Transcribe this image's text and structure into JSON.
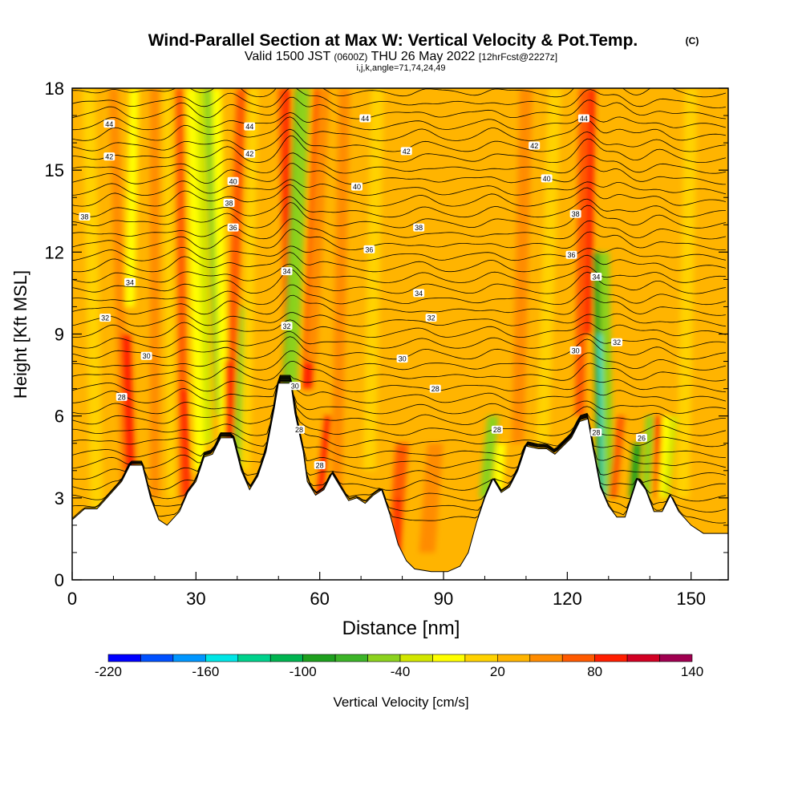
{
  "chart_data": {
    "type": "heatmap",
    "title": "Wind-Parallel Section at Max W: Vertical Velocity & Pot.Temp.",
    "title_mark": "(C)",
    "subtitle_valid": "Valid 1500 JST",
    "subtitle_utc": "(0600Z)",
    "subtitle_date": "THU 26 May 2022",
    "subtitle_fcst": "[12hrFcst@2227z]",
    "subtitle_indices": "i,j,k,angle=71,74,24,49",
    "xlabel": "Distance [nm]",
    "ylabel": "Height [Kft MSL]",
    "xlim": [
      0,
      159
    ],
    "ylim": [
      0,
      18
    ],
    "x_ticks": [
      0,
      30,
      60,
      90,
      120,
      150
    ],
    "y_ticks": [
      0,
      3,
      6,
      9,
      12,
      15,
      18
    ],
    "colorbar": {
      "label": "Vertical Velocity [cm/s]",
      "tick_labels": [
        -220,
        -160,
        -100,
        -40,
        20,
        80,
        140
      ],
      "bounds": [
        -220,
        -200,
        -180,
        -160,
        -140,
        -120,
        -100,
        -80,
        -60,
        -40,
        -20,
        0,
        20,
        40,
        60,
        80,
        100,
        120,
        140
      ],
      "colors": [
        "#0000ff",
        "#0050ff",
        "#0096ff",
        "#00e6e6",
        "#00d28c",
        "#00b450",
        "#1ea01e",
        "#3cb428",
        "#8cd21e",
        "#d2e600",
        "#ffff00",
        "#ffd200",
        "#ffb400",
        "#ff8c00",
        "#ff5a00",
        "#ff1e00",
        "#d20023",
        "#a00050",
        "#5a0096"
      ]
    },
    "terrain": [
      [
        0,
        2.2
      ],
      [
        3,
        2.6
      ],
      [
        6,
        2.6
      ],
      [
        9,
        3.1
      ],
      [
        12,
        3.6
      ],
      [
        14,
        4.2
      ],
      [
        17,
        4.2
      ],
      [
        19,
        3.0
      ],
      [
        21,
        2.2
      ],
      [
        23,
        2.0
      ],
      [
        26,
        2.5
      ],
      [
        28,
        3.2
      ],
      [
        30,
        3.6
      ],
      [
        32,
        4.5
      ],
      [
        34,
        4.6
      ],
      [
        36,
        5.2
      ],
      [
        39,
        5.2
      ],
      [
        41,
        4.0
      ],
      [
        43,
        3.3
      ],
      [
        45,
        3.8
      ],
      [
        47,
        4.7
      ],
      [
        49,
        6.3
      ],
      [
        50,
        7.2
      ],
      [
        53,
        7.2
      ],
      [
        54,
        6.1
      ],
      [
        56,
        4.7
      ],
      [
        57,
        3.6
      ],
      [
        59,
        3.1
      ],
      [
        61,
        3.3
      ],
      [
        63,
        3.9
      ],
      [
        65,
        3.4
      ],
      [
        67,
        2.9
      ],
      [
        69,
        3.0
      ],
      [
        71,
        2.8
      ],
      [
        73,
        3.1
      ],
      [
        75,
        3.3
      ],
      [
        77,
        2.4
      ],
      [
        79,
        1.3
      ],
      [
        81,
        0.7
      ],
      [
        83,
        0.4
      ],
      [
        87,
        0.3
      ],
      [
        91,
        0.3
      ],
      [
        94,
        0.5
      ],
      [
        96,
        1.0
      ],
      [
        98,
        2.1
      ],
      [
        100,
        3.0
      ],
      [
        102,
        3.7
      ],
      [
        104,
        3.2
      ],
      [
        106,
        3.4
      ],
      [
        108,
        4.0
      ],
      [
        110,
        4.9
      ],
      [
        113,
        4.8
      ],
      [
        115,
        4.8
      ],
      [
        117,
        4.6
      ],
      [
        119,
        4.9
      ],
      [
        121,
        5.2
      ],
      [
        123,
        5.8
      ],
      [
        125,
        5.9
      ],
      [
        126,
        5.0
      ],
      [
        128,
        3.4
      ],
      [
        130,
        2.7
      ],
      [
        132,
        2.3
      ],
      [
        134,
        2.3
      ],
      [
        137,
        3.7
      ],
      [
        139,
        3.3
      ],
      [
        141,
        2.5
      ],
      [
        143,
        2.5
      ],
      [
        145,
        3.1
      ],
      [
        147,
        2.5
      ],
      [
        150,
        2.0
      ],
      [
        153,
        1.7
      ],
      [
        156,
        1.7
      ],
      [
        159,
        1.7
      ]
    ],
    "theta_contour_labels": [
      {
        "x": 9,
        "y": 16.7,
        "text": "44"
      },
      {
        "x": 43,
        "y": 16.6,
        "text": "44"
      },
      {
        "x": 71,
        "y": 16.9,
        "text": "44"
      },
      {
        "x": 124,
        "y": 16.9,
        "text": "44"
      },
      {
        "x": 9,
        "y": 15.5,
        "text": "42"
      },
      {
        "x": 43,
        "y": 15.6,
        "text": "42"
      },
      {
        "x": 81,
        "y": 15.7,
        "text": "42"
      },
      {
        "x": 112,
        "y": 15.9,
        "text": "42"
      },
      {
        "x": 39,
        "y": 14.6,
        "text": "40"
      },
      {
        "x": 69,
        "y": 14.4,
        "text": "40"
      },
      {
        "x": 115,
        "y": 14.7,
        "text": "40"
      },
      {
        "x": 38,
        "y": 13.8,
        "text": "38"
      },
      {
        "x": 3,
        "y": 13.3,
        "text": "38"
      },
      {
        "x": 84,
        "y": 12.9,
        "text": "38"
      },
      {
        "x": 122,
        "y": 13.4,
        "text": "38"
      },
      {
        "x": 39,
        "y": 12.9,
        "text": "36"
      },
      {
        "x": 72,
        "y": 12.1,
        "text": "36"
      },
      {
        "x": 121,
        "y": 11.9,
        "text": "36"
      },
      {
        "x": 14,
        "y": 10.9,
        "text": "34"
      },
      {
        "x": 52,
        "y": 11.3,
        "text": "34"
      },
      {
        "x": 84,
        "y": 10.5,
        "text": "34"
      },
      {
        "x": 127,
        "y": 11.1,
        "text": "34"
      },
      {
        "x": 8,
        "y": 9.6,
        "text": "32"
      },
      {
        "x": 52,
        "y": 9.3,
        "text": "32"
      },
      {
        "x": 87,
        "y": 9.6,
        "text": "32"
      },
      {
        "x": 132,
        "y": 8.7,
        "text": "32"
      },
      {
        "x": 18,
        "y": 8.2,
        "text": "30"
      },
      {
        "x": 80,
        "y": 8.1,
        "text": "30"
      },
      {
        "x": 122,
        "y": 8.4,
        "text": "30"
      },
      {
        "x": 54,
        "y": 7.1,
        "text": "30"
      },
      {
        "x": 12,
        "y": 6.7,
        "text": "28"
      },
      {
        "x": 88,
        "y": 7.0,
        "text": "28"
      },
      {
        "x": 55,
        "y": 5.5,
        "text": "28"
      },
      {
        "x": 103,
        "y": 5.5,
        "text": "28"
      },
      {
        "x": 127,
        "y": 5.4,
        "text": "28"
      },
      {
        "x": 60,
        "y": 4.2,
        "text": "28"
      },
      {
        "x": 138,
        "y": 5.2,
        "text": "26"
      }
    ]
  }
}
